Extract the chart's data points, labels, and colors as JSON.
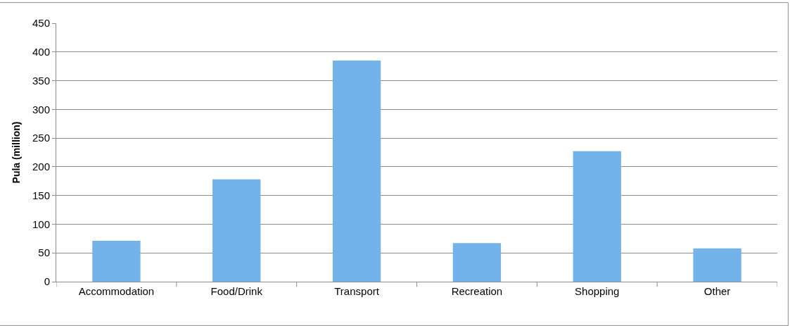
{
  "chart_data": {
    "type": "bar",
    "ylabel": "Pula (million)",
    "categories": [
      "Accommodation",
      "Food/Drink",
      "Transport",
      "Recreation",
      "Shopping",
      "Other"
    ],
    "values": [
      71,
      178,
      385,
      67,
      227,
      58
    ],
    "color": "#74b3ea",
    "ylim": [
      0,
      450
    ],
    "yticks": [
      0,
      50,
      100,
      150,
      200,
      250,
      300,
      350,
      400,
      450
    ],
    "grid": "y"
  }
}
